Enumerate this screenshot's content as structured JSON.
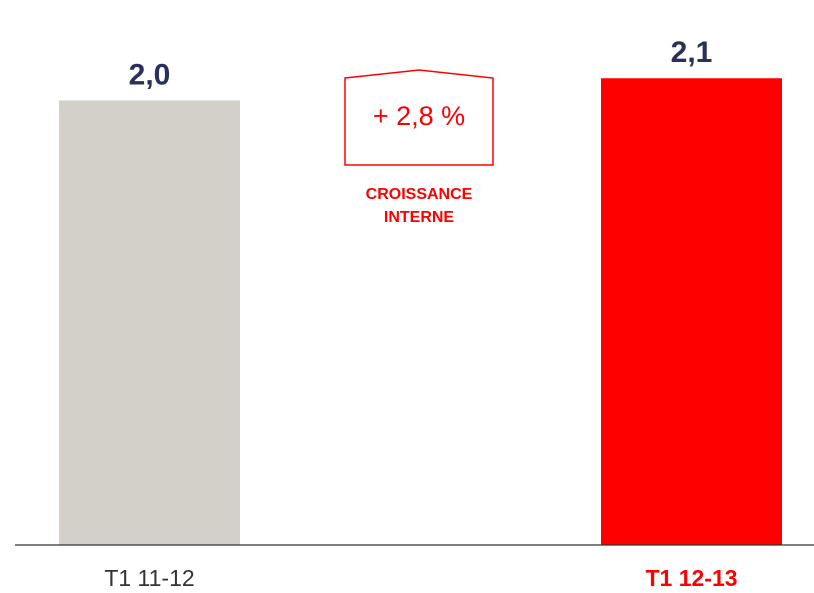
{
  "chart_data": {
    "type": "bar",
    "categories": [
      "T1 11-12",
      "T1 12-13"
    ],
    "values": [
      2.0,
      2.1
    ],
    "value_labels": [
      "2,0",
      "2,1"
    ],
    "colors": [
      "#d3d0ca",
      "#ff0000"
    ],
    "ylim": [
      0,
      2.2
    ],
    "annotations": [
      "+ 2,8 %",
      "CROISSANCE",
      "INTERNE"
    ]
  }
}
